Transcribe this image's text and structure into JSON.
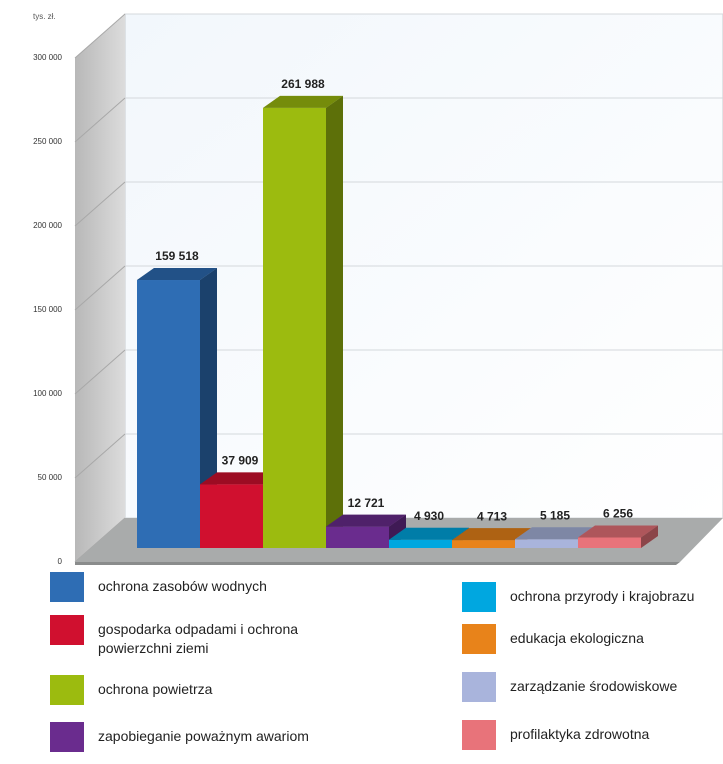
{
  "chart_data": {
    "type": "bar3d",
    "y_axis_label": "tys. zł.",
    "categories": [
      "ochrona zasobów wodnych",
      "gospodarka odpadami i ochrona powierzchni ziemi",
      "ochrona powietrza",
      "zapobieganie poważnym awariom",
      "ochrona przyrody i krajobrazu",
      "edukacja ekologiczna",
      "zarządzanie środowiskowe",
      "profilaktyka zdrowotna"
    ],
    "values": [
      159518,
      37909,
      261988,
      12721,
      4930,
      4713,
      5185,
      6256
    ],
    "value_labels": [
      "159 518",
      "37 909",
      "261 988",
      "12 721",
      "4 930",
      "4 713",
      "5 185",
      "6 256"
    ],
    "colors": [
      "#2e6db4",
      "#d0102f",
      "#9cbb0f",
      "#6a2c8e",
      "#00a7e0",
      "#e8831a",
      "#a9b4dc",
      "#e8737a"
    ],
    "ylim": [
      0,
      300000
    ],
    "yticks": [
      0,
      {
        "value": 50000,
        "label": "50 000"
      },
      {
        "value": 100000,
        "label": "100 000"
      },
      {
        "value": 150000,
        "label": "150 000"
      },
      {
        "value": 200000,
        "label": "200 000"
      },
      {
        "value": 250000,
        "label": "250 000"
      },
      {
        "value": 300000,
        "label": "300 000"
      }
    ],
    "grid": true
  }
}
